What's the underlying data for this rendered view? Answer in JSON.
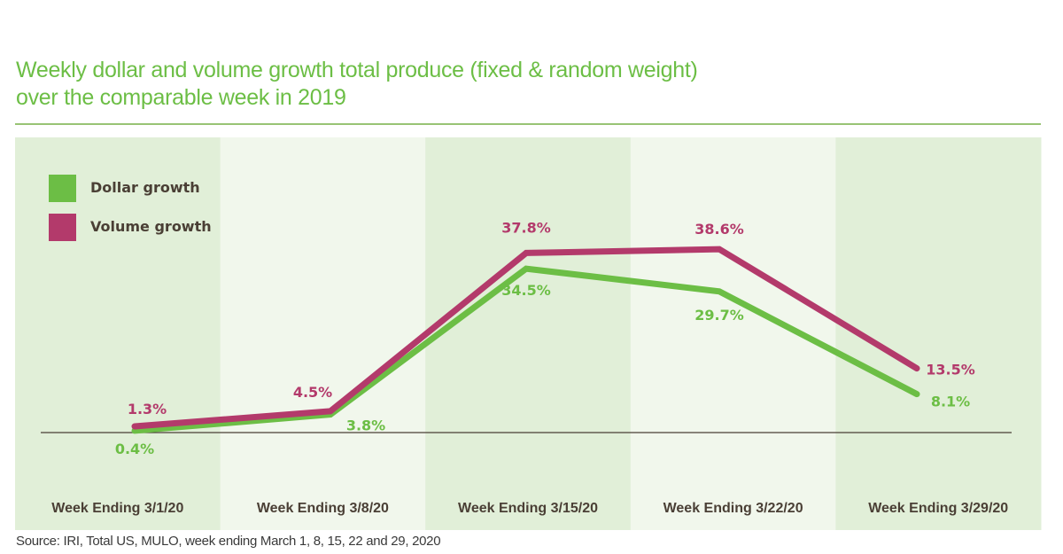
{
  "chart_data": {
    "type": "line",
    "title": "Weekly dollar and volume growth total produce (fixed & random weight) over the comparable week in 2019",
    "title_lines": [
      "Weekly dollar and volume growth total produce (fixed & random weight)",
      "over the comparable week in 2019"
    ],
    "categories": [
      "Week Ending 3/1/20",
      "Week Ending 3/8/20",
      "Week Ending 3/15/20",
      "Week Ending 3/22/20",
      "Week Ending 3/29/20"
    ],
    "series": [
      {
        "name": "Dollar growth",
        "color": "#6cbe45",
        "values": [
          0.4,
          3.8,
          34.5,
          29.7,
          8.1
        ],
        "labels": [
          "0.4%",
          "3.8%",
          "34.5%",
          "29.7%",
          "8.1%"
        ]
      },
      {
        "name": "Volume growth",
        "color": "#b33a6b",
        "values": [
          1.3,
          4.5,
          37.8,
          38.6,
          13.5
        ],
        "labels": [
          "1.3%",
          "4.5%",
          "37.8%",
          "38.6%",
          "13.5%"
        ]
      }
    ],
    "xlabel": "",
    "ylabel": "",
    "ylim": [
      -20,
      62
    ],
    "grid": false,
    "legend": "top-left",
    "band_colors": [
      "#e1efd8",
      "#f1f7ec"
    ],
    "axis_color": "#4a3f35",
    "category_label_color": "#4a3f35",
    "source": "Source: IRI, Total US, MULO, week ending March 1, 8, 15, 22 and 29, 2020"
  }
}
